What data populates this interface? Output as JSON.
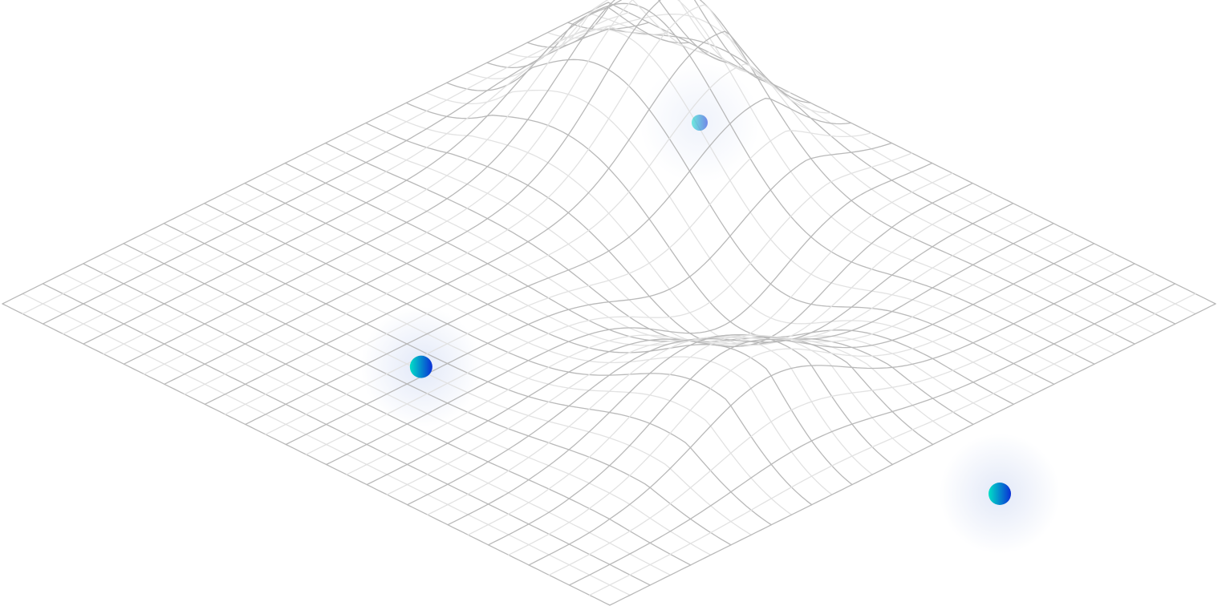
{
  "scene": {
    "type": "wireframe-surface",
    "grid_rows": 31,
    "grid_cols": 31,
    "peaks": [
      {
        "u": 0.26,
        "v": 0.16,
        "amplitude": 1.0,
        "spread": 0.12
      },
      {
        "u": 0.55,
        "v": 0.34,
        "amplitude": -0.45,
        "spread": 0.1
      },
      {
        "u": 0.82,
        "v": 0.6,
        "amplitude": 0.55,
        "spread": 0.12
      }
    ]
  },
  "colors": {
    "background": "#ffffff",
    "grid_line": "#b9b9b9",
    "grid_line_faint": "#e2e2e2",
    "orb_gradient_start": "#00e0c6",
    "orb_gradient_end": "#0a2fd6",
    "orb_glow": "#dfe6f7"
  },
  "markers": [
    {
      "name": "orb-left",
      "u": 0.45,
      "v": 0.76,
      "opacity": 1.0
    },
    {
      "name": "orb-top",
      "u": 0.38,
      "v": 0.23,
      "opacity": 0.55
    },
    {
      "name": "orb-right",
      "u": 0.98,
      "v": 0.63,
      "opacity": 1.0
    }
  ]
}
